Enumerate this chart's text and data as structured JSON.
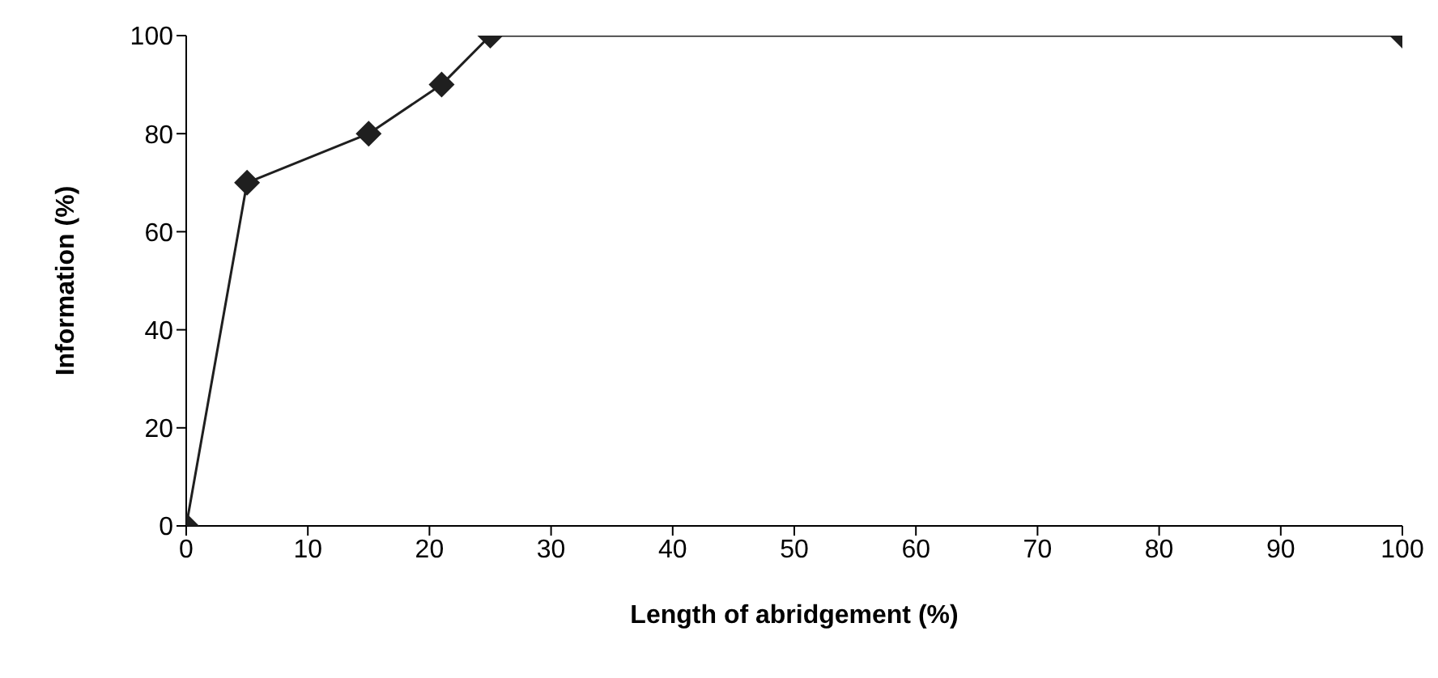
{
  "chart_data": {
    "type": "line",
    "xlabel": "Length of abridgement (%)",
    "ylabel": "Information (%)",
    "x": [
      0,
      5,
      15,
      21,
      25,
      100
    ],
    "series": [
      {
        "color": "#1f1f1f",
        "values": [
          0,
          70,
          80,
          90,
          100,
          100
        ]
      }
    ],
    "xlim": [
      0,
      100
    ],
    "xticks": [
      0,
      10,
      20,
      30,
      40,
      50,
      60,
      70,
      80,
      90,
      100
    ],
    "ylim": [
      0,
      100
    ],
    "yticks": [
      0,
      20,
      40,
      60,
      80,
      100
    ],
    "marker": "diamond",
    "line_style": "solid",
    "grid": false,
    "legend": false
  }
}
